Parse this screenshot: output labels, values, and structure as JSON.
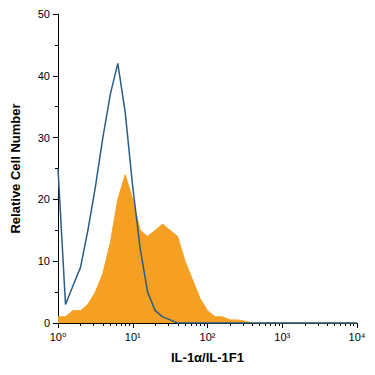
{
  "chart_data": {
    "type": "line",
    "x_label": "IL-1α/IL-1F1",
    "y_label": "Relative Cell Number",
    "log": "x",
    "grid": false,
    "xlim": [
      1,
      10000
    ],
    "xticks": [
      {
        "value": 1,
        "label": "10⁰"
      },
      {
        "value": 10,
        "label": "10¹"
      },
      {
        "value": 100,
        "label": "10²"
      },
      {
        "value": 1000,
        "label": "10³"
      },
      {
        "value": 10000,
        "label": "10⁴"
      }
    ],
    "ylim": [
      0,
      50
    ],
    "yticks": [
      0,
      10,
      20,
      30,
      40,
      50
    ],
    "x": [
      1,
      1.26,
      1.58,
      2,
      2.51,
      3.16,
      3.98,
      5.01,
      6.31,
      7.94,
      10,
      12.6,
      15.8,
      20,
      25.1,
      31.6,
      39.8,
      50.1,
      63.1,
      79.4,
      100,
      126,
      158,
      200,
      251,
      316,
      398,
      501,
      631,
      794,
      1000,
      1260,
      1580,
      2000,
      2510,
      3160,
      3980,
      5010,
      6310,
      7940,
      10000
    ],
    "series": [
      {
        "type": "area",
        "color": "#f5a023",
        "values": [
          1,
          1,
          2,
          2,
          3,
          5,
          8,
          13,
          20,
          24,
          20,
          15,
          14,
          15,
          16,
          15,
          14,
          10,
          7,
          4,
          2,
          1,
          1,
          0.5,
          0.5,
          0.3,
          0,
          0,
          0,
          0,
          0,
          0,
          0,
          0,
          0,
          0,
          0,
          0,
          0,
          0,
          0
        ]
      },
      {
        "type": "line",
        "color": "#2a5d86",
        "line_style": "solid",
        "values": [
          25,
          3,
          6,
          9,
          15,
          22,
          30,
          37,
          42,
          34,
          22,
          12,
          5,
          2,
          1,
          0.5,
          0,
          0,
          0,
          0,
          0,
          0,
          0,
          0,
          0,
          0,
          0,
          0,
          0,
          0,
          0,
          0,
          0,
          0,
          0,
          0,
          0,
          0,
          0,
          0,
          0
        ]
      }
    ]
  }
}
